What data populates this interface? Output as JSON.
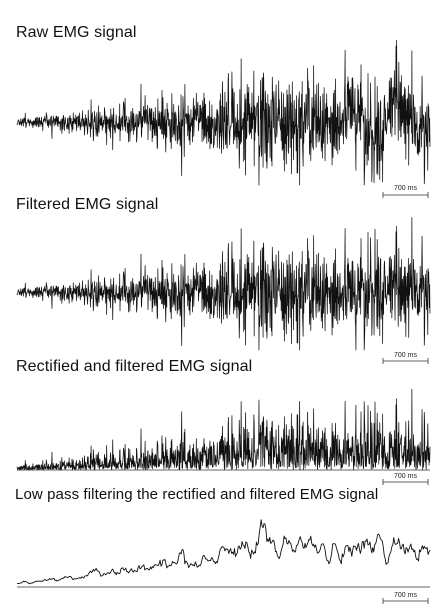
{
  "chart_data": [
    {
      "type": "line",
      "title": "Raw EMG signal",
      "series": [
        {
          "values": []
        }
      ],
      "scale_bar": {
        "label": "700 ms"
      },
      "grid": false
    },
    {
      "type": "line",
      "title": "Filtered EMG signal",
      "series": [
        {
          "values": []
        }
      ],
      "scale_bar": {
        "label": "700 ms"
      },
      "grid": false
    },
    {
      "type": "line",
      "title": "Rectified and filtered EMG signal",
      "series": [
        {
          "values": []
        }
      ],
      "scale_bar": {
        "label": "700 ms"
      },
      "grid": false
    },
    {
      "type": "line",
      "title": "Low pass filtering the rectified and filtered EMG signal",
      "series": [
        {
          "values": []
        }
      ],
      "scale_bar": {
        "label": "700 ms"
      },
      "grid": false
    }
  ]
}
